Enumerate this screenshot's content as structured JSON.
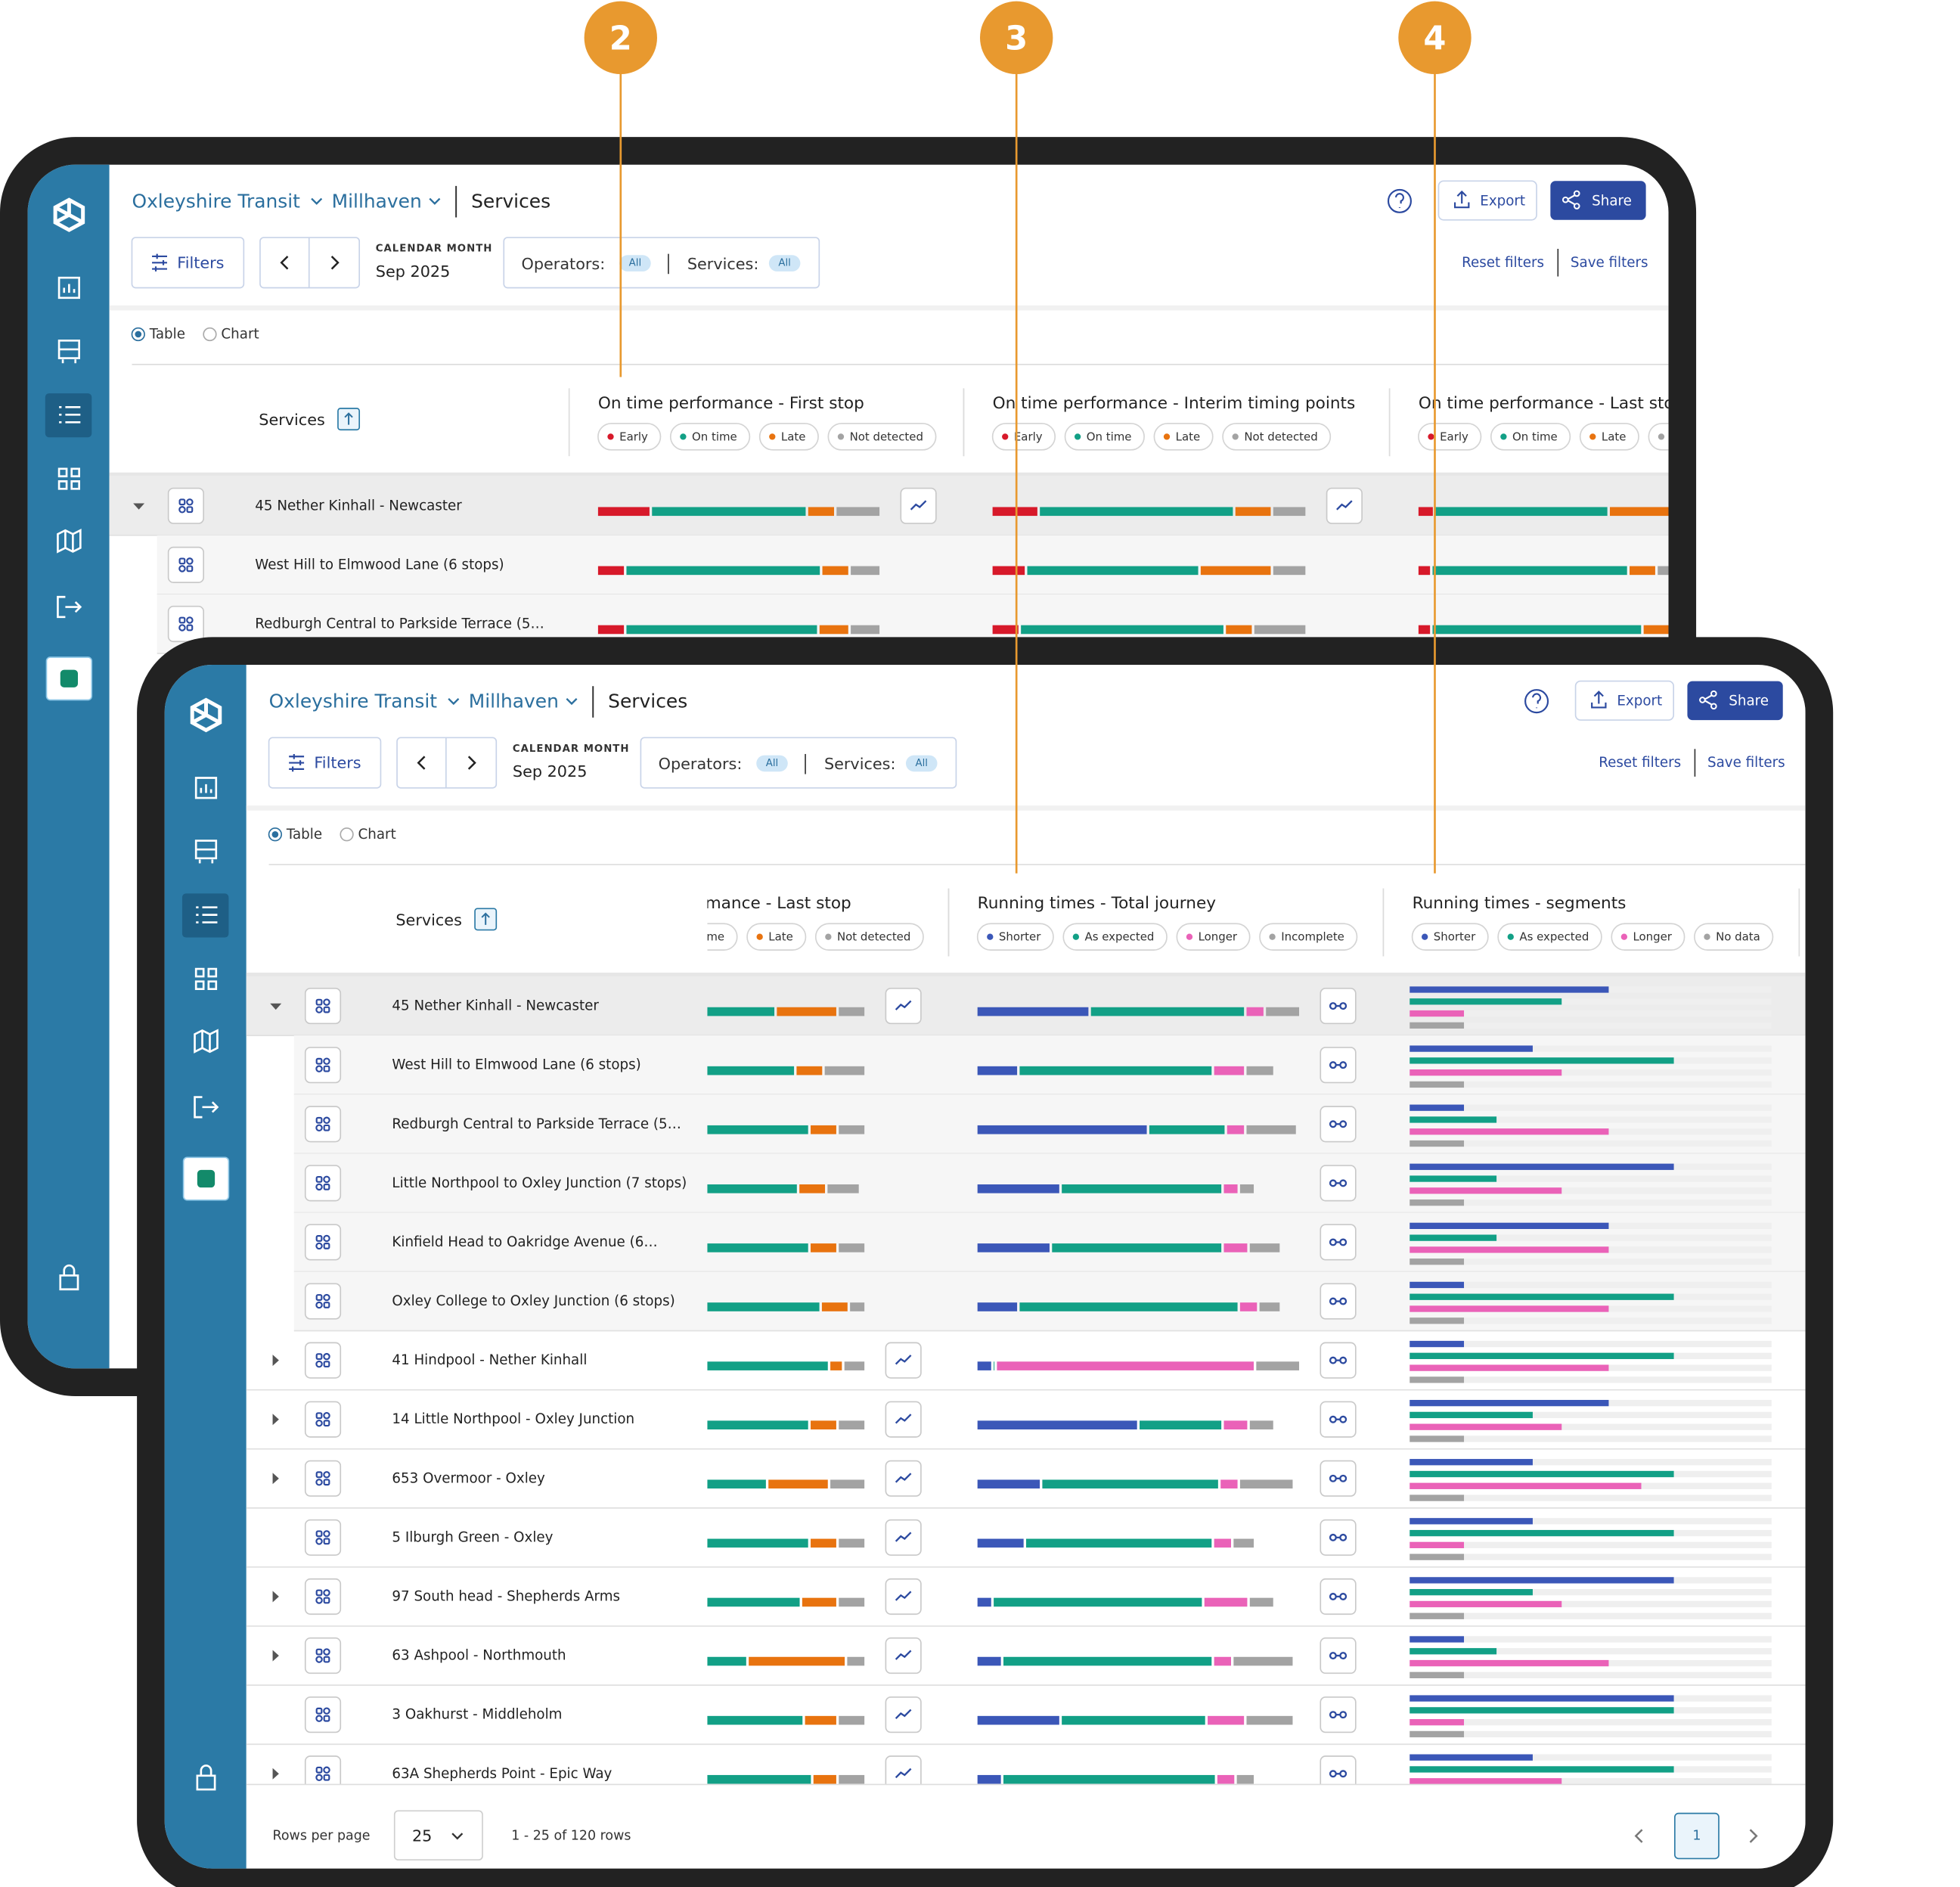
{
  "callouts": [
    "2",
    "3",
    "4"
  ],
  "header": {
    "agency": "Oxleyshire Transit",
    "region": "Millhaven",
    "page": "Services",
    "export": "Export",
    "share": "Share",
    "filters": "Filters",
    "period_label": "CALENDAR MONTH",
    "period": "Sep 2025",
    "operators_label": "Operators:",
    "operators_value": "All",
    "services_label": "Services:",
    "services_value": "All",
    "reset": "Reset filters",
    "save": "Save filters",
    "view_options": [
      "Table",
      "Chart"
    ],
    "view_selected": 0
  },
  "table": {
    "services_header": "Services",
    "columns": [
      {
        "title": "On time performance - First stop",
        "legend": [
          {
            "label": "Early",
            "color": "#d7192a"
          },
          {
            "label": "On time",
            "color": "#12a086"
          },
          {
            "label": "Late",
            "color": "#e8730f"
          },
          {
            "label": "Not detected",
            "color": "#a3a3a3"
          }
        ]
      },
      {
        "title": "On time performance - Interim timing points",
        "legend": [
          {
            "label": "Early",
            "color": "#d7192a"
          },
          {
            "label": "On time",
            "color": "#12a086"
          },
          {
            "label": "Late",
            "color": "#e8730f"
          },
          {
            "label": "Not detected",
            "color": "#a3a3a3"
          }
        ]
      },
      {
        "title": "On time performance - Last stop",
        "legend": [
          {
            "label": "Early",
            "color": "#d7192a"
          },
          {
            "label": "On time",
            "color": "#12a086"
          },
          {
            "label": "Late",
            "color": "#e8730f"
          },
          {
            "label": "Not detected",
            "color": "#a3a3a3"
          }
        ]
      },
      {
        "title": "Running times - Total journey",
        "legend": [
          {
            "label": "Shorter",
            "color": "#3b57b8"
          },
          {
            "label": "As expected",
            "color": "#12a086"
          },
          {
            "label": "Longer",
            "color": "#ea62b8"
          },
          {
            "label": "Incomplete",
            "color": "#a3a3a3"
          }
        ]
      },
      {
        "title": "Running times - segments",
        "legend": [
          {
            "label": "Shorter",
            "color": "#3b57b8"
          },
          {
            "label": "As expected",
            "color": "#12a086"
          },
          {
            "label": "Longer",
            "color": "#ea62b8"
          },
          {
            "label": "No data",
            "color": "#a3a3a3"
          }
        ]
      }
    ],
    "rows": [
      {
        "name": "45 Nether Kinhall - Newcaster",
        "level": 0,
        "expanded": true,
        "cells": [
          [
            19,
            55,
            10,
            16
          ],
          [
            15,
            62,
            12,
            11
          ],
          [
            6,
            62,
            22,
            10
          ],
          [
            35,
            48,
            6,
            11
          ],
          [
            55,
            42,
            15,
            15
          ]
        ]
      },
      {
        "name": "West Hill to Elmwood Lane (6 stops)",
        "level": 1,
        "expanded": null,
        "cells": [
          [
            10,
            69,
            10,
            11
          ],
          [
            11,
            55,
            23,
            11
          ],
          [
            5,
            70,
            10,
            15
          ],
          [
            13,
            60,
            10,
            9
          ],
          [
            34,
            73,
            42,
            15
          ]
        ]
      },
      {
        "name": "Redburgh Central to Parkside Terrace (5…",
        "level": 1,
        "expanded": null,
        "cells": [
          [
            10,
            68,
            11,
            11
          ],
          [
            9,
            65,
            9,
            17
          ],
          [
            5,
            75,
            10,
            10
          ],
          [
            53,
            24,
            6,
            16
          ],
          [
            15,
            24,
            55,
            15
          ]
        ]
      },
      {
        "name": "Little Northpool to Oxley Junction (7 stops)",
        "level": 1,
        "expanded": null,
        "cells": [
          null,
          null,
          [
            5,
            71,
            10,
            12
          ],
          [
            26,
            50,
            5,
            5
          ],
          [
            73,
            24,
            42,
            15
          ]
        ]
      },
      {
        "name": "Kinfield Head to Oakridge Avenue (6…",
        "level": 1,
        "expanded": null,
        "cells": [
          null,
          null,
          [
            5,
            75,
            10,
            10
          ],
          [
            23,
            53,
            8,
            10
          ],
          [
            55,
            24,
            55,
            15
          ]
        ]
      },
      {
        "name": "Oxley College to Oxley Junction (6 stops)",
        "level": 1,
        "expanded": null,
        "cells": [
          null,
          null,
          [
            5,
            79,
            10,
            6
          ],
          [
            13,
            68,
            6,
            7
          ],
          [
            15,
            73,
            55,
            15
          ]
        ]
      },
      {
        "name": "41 Hindpool - Nether Kinhall",
        "level": 0,
        "expanded": false,
        "cells": [
          null,
          null,
          [
            5,
            82,
            5,
            8
          ],
          [
            5,
            1,
            80,
            14
          ],
          [
            15,
            73,
            55,
            15
          ]
        ]
      },
      {
        "name": "14 Little Northpool - Oxley Junction",
        "level": 0,
        "expanded": false,
        "cells": [
          null,
          null,
          [
            5,
            75,
            10,
            10
          ],
          [
            50,
            26,
            8,
            8
          ],
          [
            55,
            34,
            42,
            15
          ]
        ]
      },
      {
        "name": "653 Overmoor - Oxley",
        "level": 0,
        "expanded": false,
        "cells": [
          null,
          null,
          [
            5,
            60,
            22,
            13
          ],
          [
            20,
            55,
            6,
            17
          ],
          [
            34,
            73,
            64,
            15
          ]
        ]
      },
      {
        "name": "5 Ilburgh Green - Oxley",
        "level": 0,
        "expanded": null,
        "cells": [
          null,
          null,
          [
            5,
            75,
            10,
            10
          ],
          [
            15,
            58,
            6,
            7
          ],
          [
            34,
            73,
            15,
            15
          ]
        ]
      },
      {
        "name": "97 South head - Shepherds Arms",
        "level": 0,
        "expanded": false,
        "cells": [
          null,
          null,
          [
            5,
            72,
            13,
            10
          ],
          [
            5,
            65,
            14,
            8
          ],
          [
            73,
            34,
            42,
            15
          ]
        ]
      },
      {
        "name": "63 Ashpool - Northmouth",
        "level": 0,
        "expanded": false,
        "cells": [
          null,
          null,
          [
            5,
            53,
            35,
            7
          ],
          [
            8,
            65,
            6,
            19
          ],
          [
            15,
            24,
            55,
            15
          ]
        ]
      },
      {
        "name": "3 Oakhurst - Middleholm",
        "level": 0,
        "expanded": null,
        "cells": [
          null,
          null,
          [
            5,
            73,
            12,
            10
          ],
          [
            26,
            45,
            12,
            15
          ],
          [
            73,
            73,
            15,
            15
          ]
        ]
      },
      {
        "name": "63A Shepherds Point - Epic Way",
        "level": 0,
        "expanded": false,
        "cells": [
          null,
          null,
          [
            5,
            76,
            9,
            10
          ],
          [
            8,
            66,
            6,
            6
          ],
          [
            34,
            73,
            42,
            15
          ]
        ]
      }
    ]
  },
  "footer": {
    "rows_per_page_label": "Rows per page",
    "rows_per_page": 25,
    "range": "1 - 25 of 120 rows",
    "page": 1
  }
}
